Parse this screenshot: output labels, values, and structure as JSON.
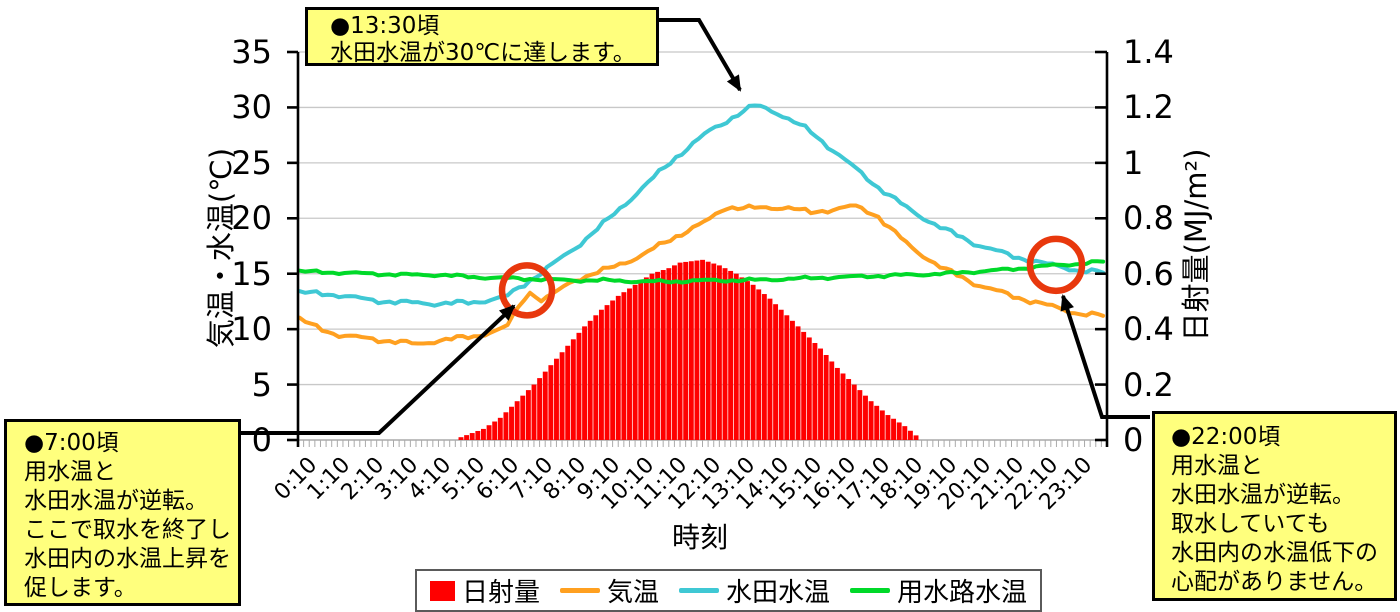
{
  "chart_data": {
    "type": "combo",
    "title": "",
    "x_axis": {
      "title": "時刻",
      "tick_labels": [
        "0:10",
        "1:10",
        "2:10",
        "3:10",
        "4:10",
        "5:10",
        "6:10",
        "7:10",
        "8:10",
        "9:10",
        "10:10",
        "11:10",
        "12:10",
        "13:10",
        "14:10",
        "15:10",
        "16:10",
        "17:10",
        "18:10",
        "19:10",
        "20:10",
        "21:10",
        "22:10",
        "23:10"
      ],
      "minor_tick_interval_minutes": 10
    },
    "y_axis_left": {
      "title": "気温・水温(℃)",
      "range": [
        0,
        35
      ],
      "tick_labels": [
        "0",
        "5",
        "10",
        "15",
        "20",
        "25",
        "30",
        "35"
      ]
    },
    "y_axis_right": {
      "title": "日射量(MJ/m²)",
      "range": [
        0,
        1.4
      ],
      "tick_labels": [
        "0",
        "0.2",
        "0.4",
        "0.6",
        "0.8",
        "1",
        "1.2",
        "1.4"
      ]
    },
    "grid": "horizontal",
    "colors": {
      "solar": "#FF0000",
      "air_temp": "#FFA020",
      "paddy_temp": "#3FC8D4",
      "canal_temp": "#00D929",
      "highlight_circle": "#E8380D",
      "gridline": "#C8C8C8"
    },
    "legend": {
      "position": "bottom",
      "items": [
        {
          "label": "日射量",
          "marker": "square",
          "color": "#FF0000"
        },
        {
          "label": "気温",
          "marker": "line",
          "color": "#FFA020"
        },
        {
          "label": "水田水温",
          "marker": "line",
          "color": "#3FC8D4"
        },
        {
          "label": "用水路水温",
          "marker": "line",
          "color": "#00D929"
        }
      ]
    },
    "series": [
      {
        "name": "日射量",
        "type": "bar",
        "axis": "right",
        "unit": "MJ/m²",
        "color": "#FF0000",
        "points": [
          [
            4.83,
            0.01
          ],
          [
            5.5,
            0.04
          ],
          [
            6.0,
            0.08
          ],
          [
            6.5,
            0.14
          ],
          [
            7.0,
            0.2
          ],
          [
            7.5,
            0.27
          ],
          [
            8.0,
            0.34
          ],
          [
            8.5,
            0.41
          ],
          [
            9.0,
            0.47
          ],
          [
            9.5,
            0.52
          ],
          [
            10.0,
            0.56
          ],
          [
            10.5,
            0.6
          ],
          [
            11.0,
            0.62
          ],
          [
            11.33,
            0.64
          ],
          [
            12.0,
            0.65
          ],
          [
            12.5,
            0.63
          ],
          [
            13.0,
            0.6
          ],
          [
            13.5,
            0.56
          ],
          [
            14.0,
            0.51
          ],
          [
            14.5,
            0.45
          ],
          [
            15.0,
            0.39
          ],
          [
            15.5,
            0.33
          ],
          [
            16.0,
            0.26
          ],
          [
            16.5,
            0.2
          ],
          [
            17.0,
            0.14
          ],
          [
            17.5,
            0.09
          ],
          [
            18.0,
            0.05
          ],
          [
            18.4,
            0.01
          ]
        ]
      },
      {
        "name": "気温",
        "type": "line",
        "axis": "left",
        "unit": "℃",
        "color": "#FFA020",
        "points": [
          [
            0.05,
            10.9
          ],
          [
            0.5,
            10.2
          ],
          [
            1.17,
            9.5
          ],
          [
            2.17,
            9.1
          ],
          [
            3.17,
            8.8
          ],
          [
            3.5,
            8.6
          ],
          [
            4.17,
            9.0
          ],
          [
            5.17,
            9.3
          ],
          [
            6.17,
            10.1
          ],
          [
            6.83,
            13.4
          ],
          [
            7.25,
            12.6
          ],
          [
            7.5,
            13.0
          ],
          [
            8.17,
            14.4
          ],
          [
            9.17,
            15.4
          ],
          [
            10.17,
            16.6
          ],
          [
            11.17,
            18.3
          ],
          [
            12.17,
            19.8
          ],
          [
            12.67,
            21.0
          ],
          [
            13.5,
            20.9
          ],
          [
            14.5,
            21.0
          ],
          [
            15.2,
            20.5
          ],
          [
            16.5,
            21.1
          ],
          [
            17.17,
            20.3
          ],
          [
            17.5,
            19.3
          ],
          [
            18.17,
            17.4
          ],
          [
            19.17,
            15.4
          ],
          [
            20.17,
            14.0
          ],
          [
            21.17,
            13.0
          ],
          [
            22.17,
            12.2
          ],
          [
            23.17,
            11.4
          ],
          [
            23.9,
            11.2
          ]
        ]
      },
      {
        "name": "水田水温",
        "type": "line",
        "axis": "left",
        "unit": "℃",
        "color": "#3FC8D4",
        "points": [
          [
            0.05,
            13.3
          ],
          [
            1.17,
            13.1
          ],
          [
            2.17,
            12.6
          ],
          [
            3.17,
            12.4
          ],
          [
            4.17,
            12.3
          ],
          [
            5.17,
            12.4
          ],
          [
            6.17,
            12.9
          ],
          [
            6.83,
            14.3
          ],
          [
            7.17,
            15.0
          ],
          [
            8.17,
            17.2
          ],
          [
            9.17,
            19.8
          ],
          [
            10.17,
            22.6
          ],
          [
            11.17,
            25.4
          ],
          [
            12.17,
            27.8
          ],
          [
            13.17,
            29.6
          ],
          [
            13.6,
            30.2
          ],
          [
            14.17,
            29.6
          ],
          [
            15.17,
            27.9
          ],
          [
            16.17,
            25.4
          ],
          [
            17.17,
            22.9
          ],
          [
            18.17,
            20.7
          ],
          [
            19.17,
            19.0
          ],
          [
            20.17,
            17.6
          ],
          [
            21.17,
            16.6
          ],
          [
            22.17,
            15.9
          ],
          [
            22.5,
            15.7
          ],
          [
            23.17,
            15.3
          ],
          [
            23.9,
            15.1
          ]
        ]
      },
      {
        "name": "用水路水温",
        "type": "line",
        "axis": "left",
        "unit": "℃",
        "color": "#00D929",
        "points": [
          [
            0.05,
            15.2
          ],
          [
            1.17,
            15.1
          ],
          [
            2.17,
            15.0
          ],
          [
            3.17,
            14.9
          ],
          [
            4.17,
            14.9
          ],
          [
            5.17,
            14.7
          ],
          [
            6.17,
            14.6
          ],
          [
            7.17,
            14.5
          ],
          [
            8.17,
            14.4
          ],
          [
            9.17,
            14.4
          ],
          [
            10.17,
            14.3
          ],
          [
            11.17,
            14.3
          ],
          [
            12.17,
            14.4
          ],
          [
            13.17,
            14.4
          ],
          [
            14.17,
            14.5
          ],
          [
            15.17,
            14.6
          ],
          [
            16.17,
            14.7
          ],
          [
            17.17,
            14.8
          ],
          [
            18.17,
            14.9
          ],
          [
            19.17,
            15.0
          ],
          [
            20.17,
            15.2
          ],
          [
            21.17,
            15.4
          ],
          [
            22.17,
            15.7
          ],
          [
            23.17,
            15.9
          ],
          [
            23.9,
            16.1
          ]
        ]
      }
    ],
    "highlight_circles": [
      {
        "time": "7:00",
        "value_c": 13.5,
        "meaning": "用水温と水田水温が逆転(朝)"
      },
      {
        "time": "22:00",
        "value_c": 15.8,
        "meaning": "用水温と水田水温が逆転(夜)"
      }
    ],
    "annotations": {
      "peak": {
        "text": "●13:30頃\n水田水温が30℃に達します。"
      },
      "morning": {
        "text": "●7:00頃\n用水温と\n水田水温が逆転。\nここで取水を終了し\n水田内の水温上昇を\n促します。"
      },
      "night": {
        "text": "●22:00頃\n用水温と\n水田水温が逆転。\n取水していても\n水田内の水温低下の\n心配がありません。"
      }
    }
  }
}
